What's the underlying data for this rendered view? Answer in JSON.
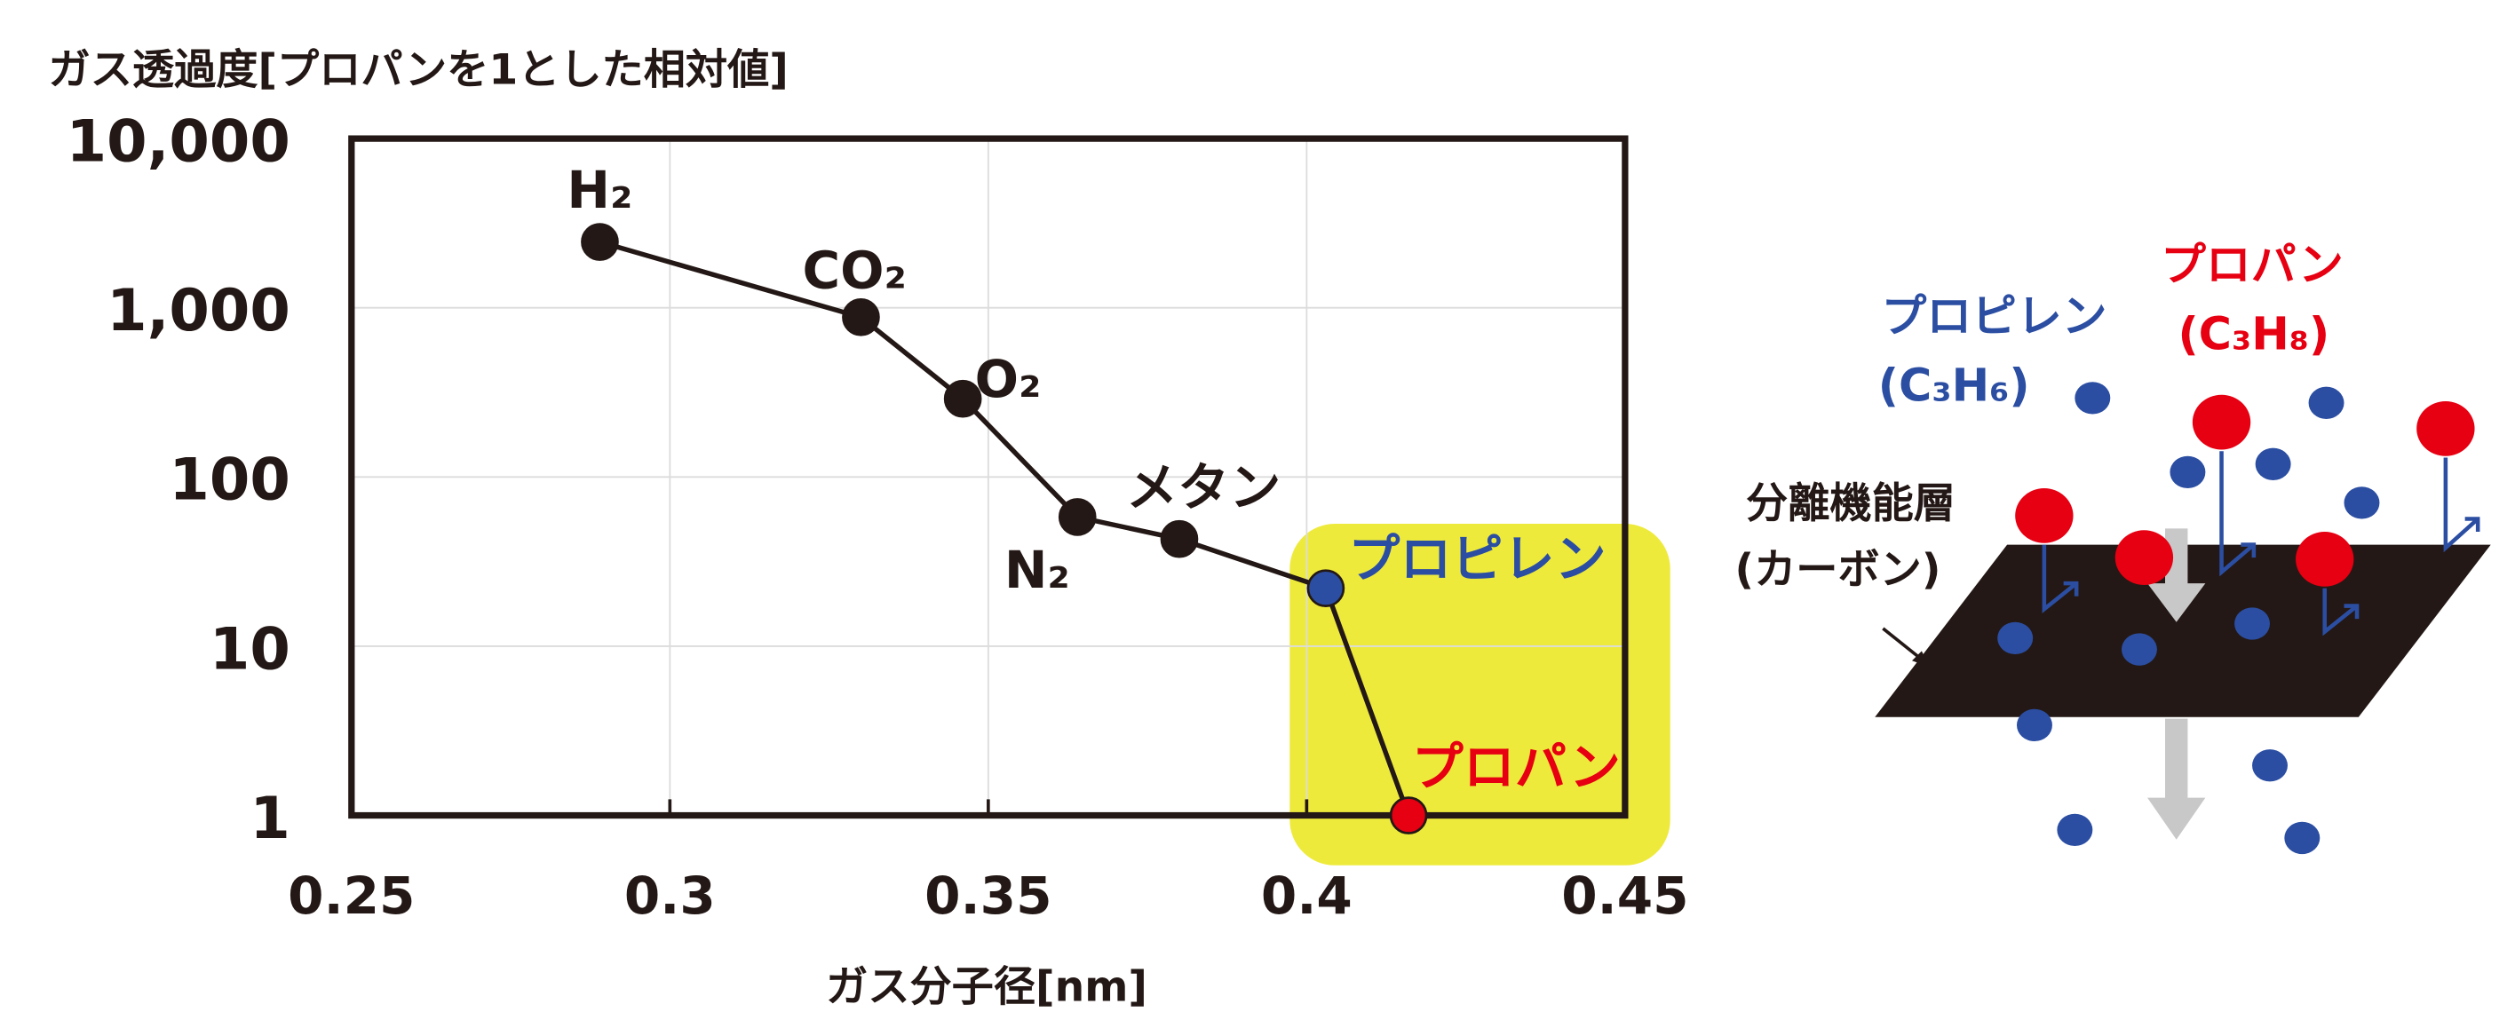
{
  "chart_data": {
    "type": "line",
    "title": "ガス透過度[プロパンを1とした相対値]",
    "xlabel": "ガス分子径[nm]",
    "x": [
      0.289,
      0.33,
      0.346,
      0.364,
      0.38,
      0.403,
      0.416
    ],
    "values": [
      2450,
      880,
      290,
      58,
      43,
      22,
      1
    ],
    "point_labels": [
      "H₂",
      "CO₂",
      "O₂",
      "N₂",
      "メタン",
      "プロピレン",
      "プロパン"
    ],
    "point_colors": [
      "#231815",
      "#231815",
      "#231815",
      "#231815",
      "#231815",
      "#2b4ea2",
      "#e60012"
    ],
    "line_color": "#231815",
    "log_y": true,
    "grid": true,
    "xlim": [
      0.25,
      0.45
    ],
    "ylim": [
      1,
      10000
    ],
    "xticks": [
      0.25,
      0.3,
      0.35,
      0.4,
      0.45
    ],
    "yticks": [
      1,
      10,
      100,
      {
        "value": 1000,
        "label": "1,000"
      },
      {
        "value": 10000,
        "label": "10,000"
      }
    ]
  },
  "diagram": {
    "propylene": "プロピレン",
    "propylene_formula": "(C₃H₆)",
    "propane": "プロパン",
    "propane_formula": "(C₃H₈)",
    "layer": "分離機能層",
    "layer_material": "(カーボン)"
  }
}
